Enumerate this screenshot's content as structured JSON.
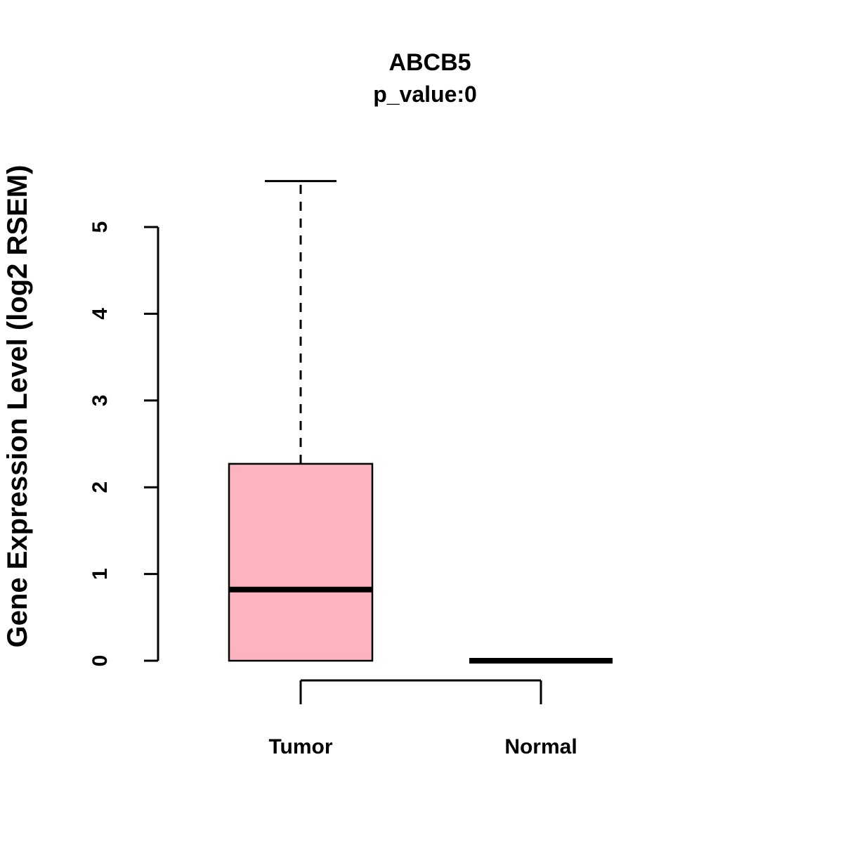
{
  "title": "ABCB5",
  "subtitle": "p_value:0",
  "ylabel": "Gene Expression Level (log2 RSEM)",
  "colors": {
    "box_fill": "#FFB3C1",
    "line": "#000000",
    "background": "#FFFFFF"
  },
  "chart_data": {
    "type": "boxplot",
    "title": "ABCB5",
    "subtitle": "p_value:0",
    "ylabel": "Gene Expression Level (log2 RSEM)",
    "xlabel": "",
    "categories": [
      "Tumor",
      "Normal"
    ],
    "yticks": [
      0,
      1,
      2,
      3,
      4,
      5
    ],
    "ylim": [
      0,
      5.6
    ],
    "grid": "off",
    "legend": "none",
    "series": [
      {
        "name": "Tumor",
        "min": 0,
        "q1": 0,
        "median": 0.82,
        "q3": 2.27,
        "max": 5.53,
        "box_color": "#FFB3C1",
        "whisker_style": "dashed"
      },
      {
        "name": "Normal",
        "min": 0,
        "q1": 0,
        "median": 0,
        "q3": 0,
        "max": 0,
        "box_color": "#FFB3C1",
        "whisker_style": "none"
      }
    ]
  }
}
